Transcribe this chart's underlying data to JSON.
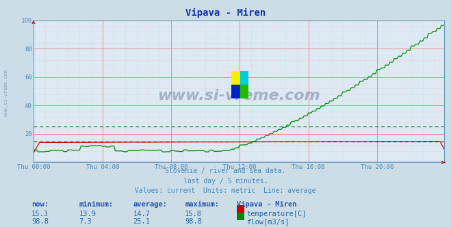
{
  "title": "Vipava - Miren",
  "bg_color": "#ccdde8",
  "plot_bg_color": "#ddeaf4",
  "grid_color_major": "#ee8888",
  "grid_color_minor": "#f4bbbb",
  "x_label_color": "#4488bb",
  "y_label_color": "#4488bb",
  "title_color": "#1133aa",
  "watermark_text": "www.si-vreme.com",
  "watermark_color": "#223355",
  "watermark_alpha": 0.3,
  "side_watermark_color": "#446688",
  "side_watermark_alpha": 0.55,
  "subtitle_lines": [
    "Slovenia / river and sea data.",
    "last day / 5 minutes.",
    "Values: current  Units: metric  Line: average"
  ],
  "subtitle_color": "#4488bb",
  "table_header_color": "#2255aa",
  "table_value_color": "#2266aa",
  "ylim": [
    0,
    100
  ],
  "yticks": [
    20,
    40,
    60,
    80,
    100
  ],
  "x_ticks_labels": [
    "Thu 00:00",
    "Thu 04:00",
    "Thu 08:00",
    "Thu 12:00",
    "Thu 16:00",
    "Thu 20:00"
  ],
  "x_ticks_pos": [
    0,
    48,
    96,
    144,
    192,
    240
  ],
  "n_points": 288,
  "temp_color": "#cc0000",
  "flow_color": "#008800",
  "height_color": "#0000cc",
  "avg_temp": 14.7,
  "avg_flow": 25.1,
  "table_rows": [
    {
      "label": "temperature[C]",
      "color": "#cc0000",
      "now": "15.3",
      "min": "13.9",
      "avg": "14.7",
      "max": "15.8"
    },
    {
      "label": "flow[m3/s]",
      "color": "#008800",
      "now": "98.8",
      "min": "7.3",
      "avg": "25.1",
      "max": "98.8"
    }
  ],
  "logo_colors": {
    "top_left": "#ffee00",
    "top_right": "#00ccdd",
    "bottom_left": "#0022cc",
    "bottom_right": "#22bb00"
  }
}
